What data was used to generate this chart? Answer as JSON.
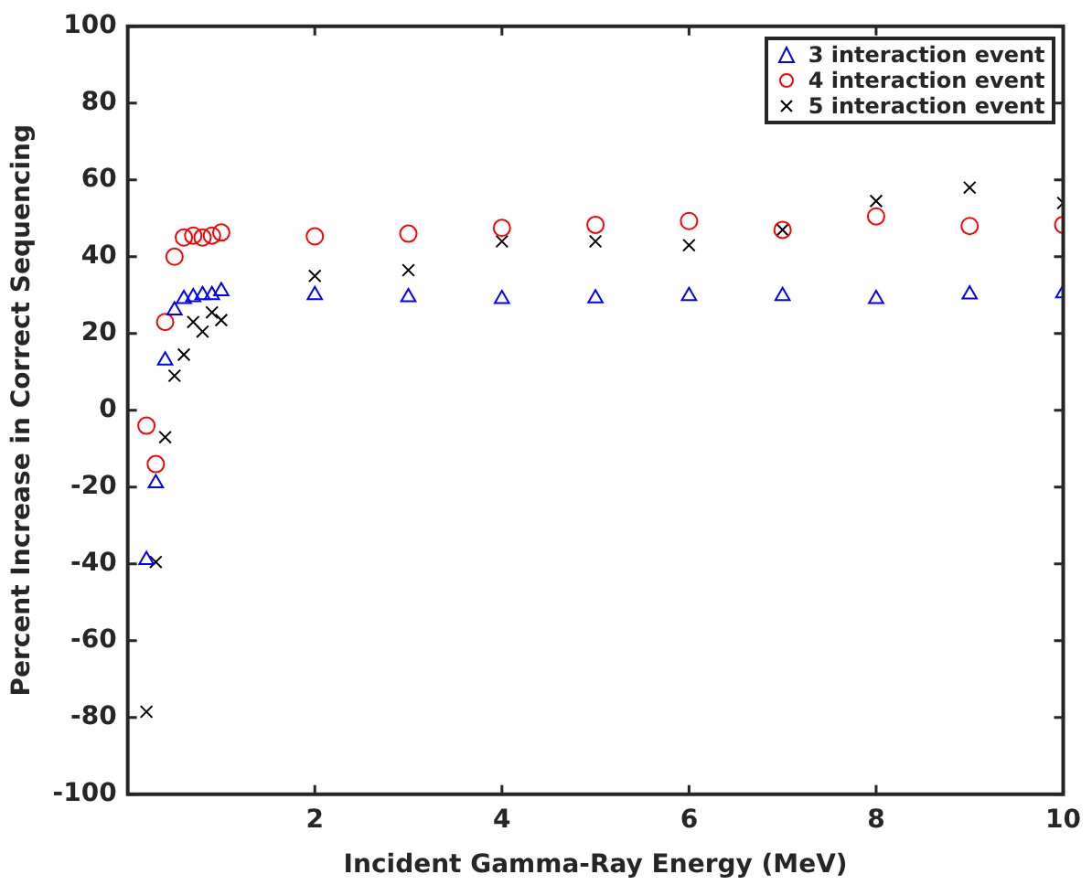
{
  "chart_data": {
    "type": "scatter",
    "xlabel": "Incident Gamma-Ray Energy (MeV)",
    "ylabel": "Percent Increase in Correct Sequencing",
    "x": [
      0.2,
      0.3,
      0.4,
      0.5,
      0.6,
      0.7,
      0.8,
      0.9,
      1.0,
      2,
      3,
      4,
      5,
      6,
      7,
      8,
      9,
      10
    ],
    "series": [
      {
        "name": "3 interaction event",
        "color": "#0000ff",
        "marker": "triangle",
        "values": [
          -39,
          -19,
          13,
          26,
          29,
          29.5,
          30,
          30,
          31,
          30,
          29.5,
          29,
          29.2,
          29.8,
          29.8,
          29,
          30.2,
          30.5
        ]
      },
      {
        "name": "4 interaction event",
        "color": "#ff0000",
        "marker": "circle",
        "values": [
          -4,
          -14,
          23,
          40,
          45,
          45.5,
          45,
          45.5,
          46.3,
          45.3,
          46,
          47.5,
          48.3,
          49.3,
          47,
          50.5,
          48,
          48.3
        ]
      },
      {
        "name": "5 interaction event",
        "color": "#000000",
        "marker": "cross",
        "values": [
          -78.5,
          -39.5,
          -7,
          9,
          14.5,
          23,
          20.5,
          25.5,
          23.5,
          35,
          36.5,
          44,
          44,
          43,
          47,
          54.5,
          58,
          54
        ]
      }
    ],
    "xlim": [
      0,
      10
    ],
    "xticks": [
      2,
      4,
      6,
      8,
      10
    ],
    "ylim": [
      -100,
      100
    ],
    "yticks": [
      -100,
      -80,
      -60,
      -40,
      -20,
      0,
      20,
      40,
      60,
      80,
      100
    ],
    "grid": false,
    "legend": "top right"
  }
}
